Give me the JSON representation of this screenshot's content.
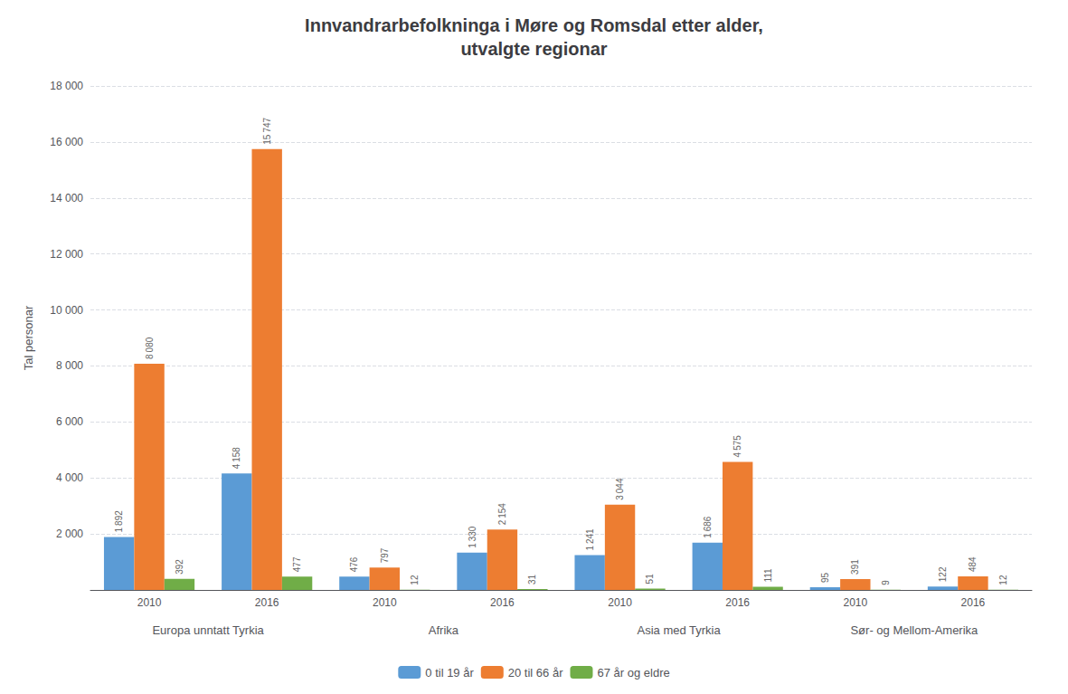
{
  "chart_data": {
    "type": "bar",
    "title": "Innvandrarbefolkninga i Møre og Romsdal etter alder,\nutvalgte regionar",
    "ylabel": "Tal personar",
    "categories": [
      "2010",
      "2016",
      "2010",
      "2016",
      "2010",
      "2016",
      "2010",
      "2016"
    ],
    "groups": [
      {
        "label": "Europa unntatt Tyrkia",
        "categories": [
          "2010",
          "2016"
        ]
      },
      {
        "label": "Afrika",
        "categories": [
          "2010",
          "2016"
        ]
      },
      {
        "label": "Asia med Tyrkia",
        "categories": [
          "2010",
          "2016"
        ]
      },
      {
        "label": "Sør- og Mellom-Amerika",
        "categories": [
          "2010",
          "2016"
        ]
      }
    ],
    "series": [
      {
        "name": "0 til 19 år",
        "color": "#5B9BD5",
        "values": [
          1892,
          4158,
          476,
          1330,
          1241,
          1686,
          95,
          122
        ],
        "value_labels": [
          "1 892",
          "4 158",
          "476",
          "1 330",
          "1 241",
          "1 686",
          "95",
          "122"
        ]
      },
      {
        "name": "20 til 66 år",
        "color": "#ED7D31",
        "values": [
          8080,
          15747,
          797,
          2154,
          3044,
          4575,
          391,
          484
        ],
        "value_labels": [
          "8 080",
          "15 747",
          "797",
          "2 154",
          "3 044",
          "4 575",
          "391",
          "484"
        ]
      },
      {
        "name": "67 år og eldre",
        "color": "#70AD47",
        "values": [
          392,
          477,
          12,
          31,
          51,
          111,
          9,
          12
        ],
        "value_labels": [
          "392",
          "477",
          "12",
          "31",
          "51",
          "111",
          "9",
          "12"
        ]
      }
    ],
    "ylim": [
      0,
      18000
    ],
    "yticks": [
      {
        "value": 0,
        "label": ""
      },
      {
        "value": 2000,
        "label": "2 000"
      },
      {
        "value": 4000,
        "label": "4 000"
      },
      {
        "value": 6000,
        "label": "6 000"
      },
      {
        "value": 8000,
        "label": "8 000"
      },
      {
        "value": 10000,
        "label": "10 000"
      },
      {
        "value": 12000,
        "label": "12 000"
      },
      {
        "value": 14000,
        "label": "14 000"
      },
      {
        "value": 16000,
        "label": "16 000"
      },
      {
        "value": 18000,
        "label": "18 000"
      }
    ],
    "grid": true,
    "legend": "bottom",
    "data_labels": true
  }
}
